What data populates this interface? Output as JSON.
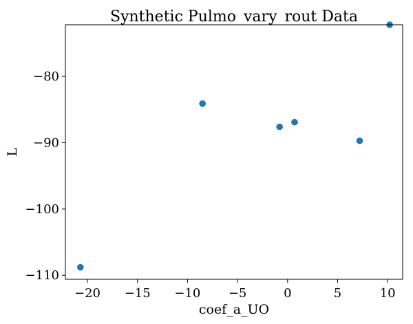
{
  "chart_data": {
    "type": "scatter",
    "title": "Synthetic Pulmo_vary_rout Data",
    "xlabel": "coef_a_UO",
    "ylabel": "L",
    "xlim": [
      -22.2,
      11.5
    ],
    "ylim": [
      -110.6,
      -72.2
    ],
    "xticks": [
      -20,
      -15,
      -10,
      -5,
      0,
      5,
      10
    ],
    "xtick_labels": [
      "−20",
      "−15",
      "−10",
      "−5",
      "0",
      "5",
      "10"
    ],
    "yticks": [
      -110,
      -100,
      -90,
      -80
    ],
    "ytick_labels": [
      "−110",
      "−100",
      "−90",
      "−80"
    ],
    "grid": false,
    "series": [
      {
        "color": "#1f77b4",
        "points": [
          {
            "x": -20.7,
            "y": -108.8
          },
          {
            "x": -8.5,
            "y": -84.1
          },
          {
            "x": -0.8,
            "y": -87.6
          },
          {
            "x": 0.7,
            "y": -86.9
          },
          {
            "x": 7.2,
            "y": -89.7
          },
          {
            "x": 10.2,
            "y": -72.2
          }
        ]
      }
    ]
  }
}
